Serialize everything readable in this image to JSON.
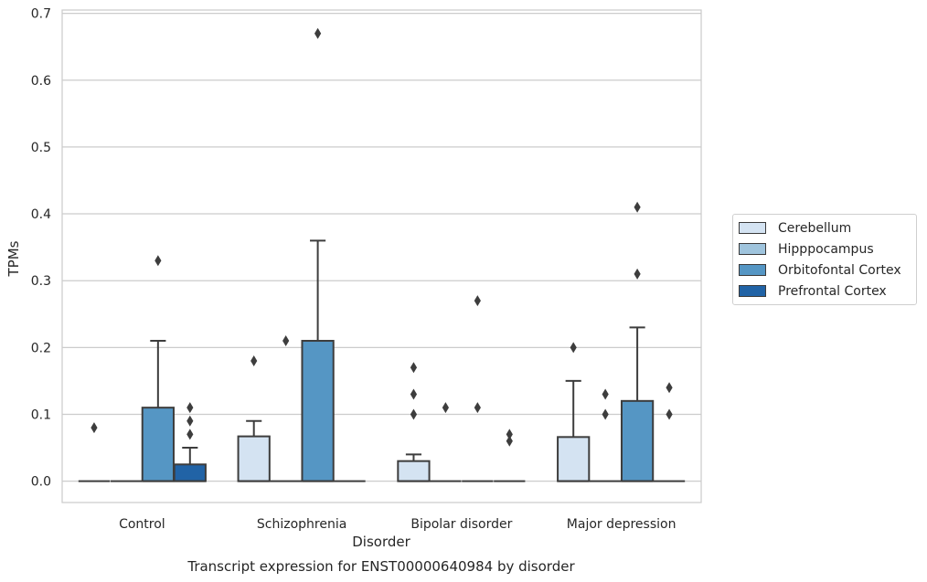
{
  "chart_data": {
    "type": "box",
    "xlabel": "Disorder",
    "ylabel": "TPMs",
    "caption": "Transcript expression for ENST00000640984 by disorder",
    "ylim": [
      -0.032,
      0.705
    ],
    "yticks": [
      0.0,
      0.1,
      0.2,
      0.3,
      0.4,
      0.5,
      0.6,
      0.7
    ],
    "ytick_labels": [
      "0.0",
      "0.1",
      "0.2",
      "0.3",
      "0.4",
      "0.5",
      "0.6",
      "0.7"
    ],
    "grid": true,
    "legend_position": "right",
    "categories": [
      "Control",
      "Schizophrenia",
      "Bipolar disorder",
      "Major depression"
    ],
    "series": [
      {
        "name": "Cerebellum",
        "color": "#d4e3f2",
        "boxes": [
          {
            "q1": 0,
            "median": 0,
            "q3": 0,
            "whisker_low": 0,
            "whisker_high": 0,
            "outliers": [
              0.08
            ]
          },
          {
            "q1": 0,
            "median": 0,
            "q3": 0.067,
            "whisker_low": 0,
            "whisker_high": 0.09,
            "outliers": [
              0.18
            ]
          },
          {
            "q1": 0,
            "median": 0,
            "q3": 0.03,
            "whisker_low": 0,
            "whisker_high": 0.04,
            "outliers": [
              0.1,
              0.13,
              0.17
            ]
          },
          {
            "q1": 0,
            "median": 0,
            "q3": 0.066,
            "whisker_low": 0,
            "whisker_high": 0.15,
            "outliers": [
              0.2
            ]
          }
        ]
      },
      {
        "name": "Hipppocampus",
        "color": "#9fc4dd",
        "boxes": [
          {
            "q1": 0,
            "median": 0,
            "q3": 0,
            "whisker_low": 0,
            "whisker_high": 0,
            "outliers": []
          },
          {
            "q1": 0,
            "median": 0,
            "q3": 0,
            "whisker_low": 0,
            "whisker_high": 0,
            "outliers": [
              0.21
            ]
          },
          {
            "q1": 0,
            "median": 0,
            "q3": 0,
            "whisker_low": 0,
            "whisker_high": 0,
            "outliers": [
              0.11
            ]
          },
          {
            "q1": 0,
            "median": 0,
            "q3": 0,
            "whisker_low": 0,
            "whisker_high": 0,
            "outliers": [
              0.1,
              0.13
            ]
          }
        ]
      },
      {
        "name": "Orbitofontal Cortex",
        "color": "#5596c4",
        "boxes": [
          {
            "q1": 0,
            "median": 0,
            "q3": 0.11,
            "whisker_low": 0,
            "whisker_high": 0.21,
            "outliers": [
              0.33
            ]
          },
          {
            "q1": 0,
            "median": 0,
            "q3": 0.21,
            "whisker_low": 0,
            "whisker_high": 0.36,
            "outliers": [
              0.67
            ]
          },
          {
            "q1": 0,
            "median": 0,
            "q3": 0,
            "whisker_low": 0,
            "whisker_high": 0,
            "outliers": [
              0.11,
              0.27
            ]
          },
          {
            "q1": 0,
            "median": 0,
            "q3": 0.12,
            "whisker_low": 0,
            "whisker_high": 0.23,
            "outliers": [
              0.31,
              0.41
            ]
          }
        ]
      },
      {
        "name": "Prefrontal Cortex",
        "color": "#2163a6",
        "boxes": [
          {
            "q1": 0,
            "median": 0,
            "q3": 0.025,
            "whisker_low": 0,
            "whisker_high": 0.05,
            "outliers": [
              0.07,
              0.09,
              0.11
            ]
          },
          {
            "q1": 0,
            "median": 0,
            "q3": 0,
            "whisker_low": 0,
            "whisker_high": 0,
            "outliers": []
          },
          {
            "q1": 0,
            "median": 0,
            "q3": 0,
            "whisker_low": 0,
            "whisker_high": 0,
            "outliers": [
              0.06,
              0.07
            ]
          },
          {
            "q1": 0,
            "median": 0,
            "q3": 0,
            "whisker_low": 0,
            "whisker_high": 0,
            "outliers": [
              0.1,
              0.14
            ]
          }
        ]
      }
    ]
  }
}
